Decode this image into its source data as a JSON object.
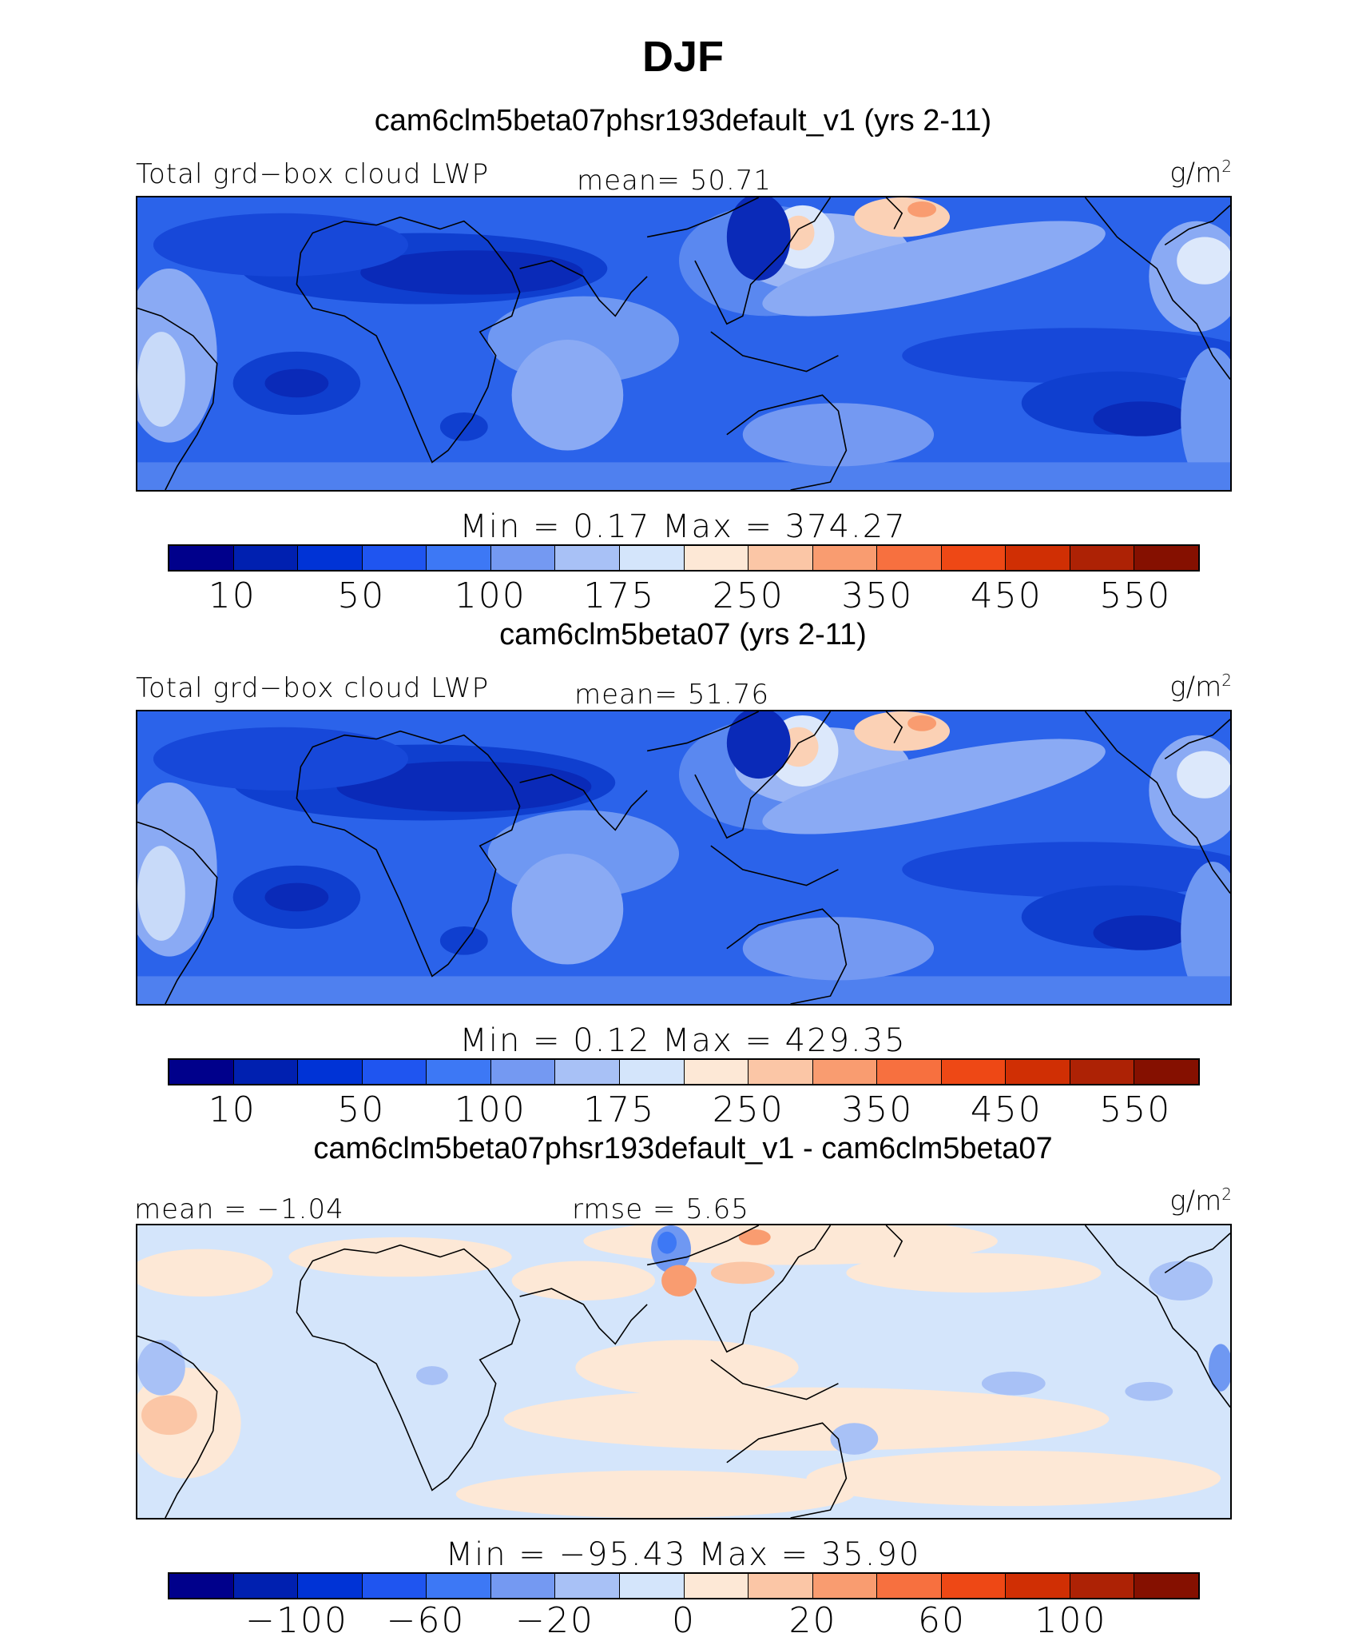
{
  "title": "DJF",
  "panels": [
    {
      "title": "cam6clm5beta07phsr193default_v1 (yrs 2-11)",
      "left_label": "Total grd−box cloud LWP",
      "center_label": "mean=  50.71",
      "unit": "g/m",
      "unit_sup": "2",
      "minmax": "Min  =    0.17  Max  =  374.27",
      "colorbar": {
        "colors": [
          "#00008b",
          "#0020b0",
          "#0033d6",
          "#1f55f0",
          "#3d78f5",
          "#7499f2",
          "#a8c1f6",
          "#d4e5fb",
          "#fde8d6",
          "#fbc6a6",
          "#f99c70",
          "#f7703f",
          "#ee4815",
          "#d02f04",
          "#ad2205",
          "#851000"
        ],
        "ticks": [
          "10",
          "50",
          "100",
          "175",
          "250",
          "350",
          "450",
          "550"
        ]
      }
    },
    {
      "title": "cam6clm5beta07 (yrs 2-11)",
      "left_label": "Total grd−box cloud LWP",
      "center_label": "mean=  51.76",
      "unit": "g/m",
      "unit_sup": "2",
      "minmax": "Min  =    0.12  Max  =  429.35",
      "colorbar": {
        "colors": [
          "#00008b",
          "#0020b0",
          "#0033d6",
          "#1f55f0",
          "#3d78f5",
          "#7499f2",
          "#a8c1f6",
          "#d4e5fb",
          "#fde8d6",
          "#fbc6a6",
          "#f99c70",
          "#f7703f",
          "#ee4815",
          "#d02f04",
          "#ad2205",
          "#851000"
        ],
        "ticks": [
          "10",
          "50",
          "100",
          "175",
          "250",
          "350",
          "450",
          "550"
        ]
      }
    },
    {
      "title": "cam6clm5beta07phsr193default_v1 - cam6clm5beta07",
      "left_label": "mean =  −1.04",
      "center_label": "rmse =    5.65",
      "unit": "g/m",
      "unit_sup": "2",
      "minmax": "Min  =  −95.43  Max  =   35.90",
      "colorbar": {
        "colors": [
          "#00008b",
          "#0020b0",
          "#0033d6",
          "#1f55f0",
          "#3d78f5",
          "#7499f2",
          "#a8c1f6",
          "#d4e5fb",
          "#fde8d6",
          "#fbc6a6",
          "#f99c70",
          "#f7703f",
          "#ee4815",
          "#d02f04",
          "#ad2205",
          "#851000"
        ],
        "ticks": [
          "−100",
          "−60",
          "−20",
          "0",
          "20",
          "60",
          "100"
        ]
      }
    }
  ]
}
